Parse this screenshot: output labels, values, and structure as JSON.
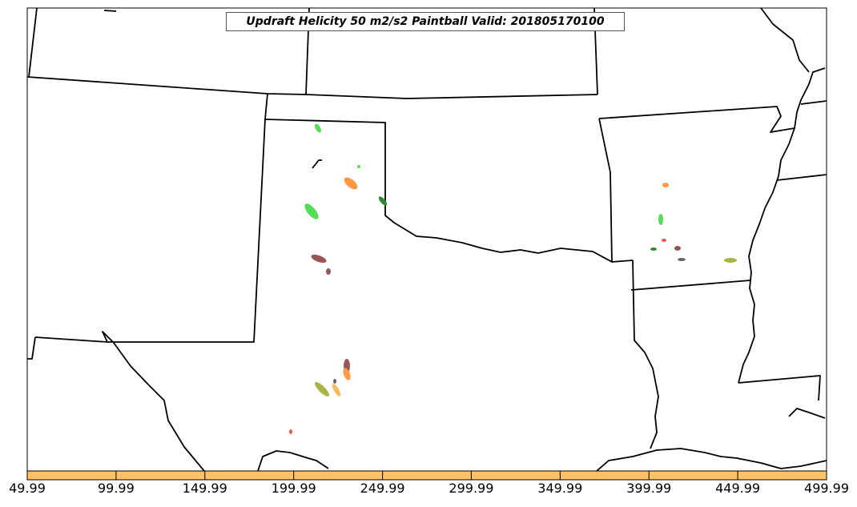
{
  "title": "Updraft Helicity 50 m2/s2 Paintball Valid: 201805170100",
  "colorbar": {
    "color": "#ffc266",
    "tick_labels": [
      "49.99",
      "99.99",
      "149.99",
      "199.99",
      "249.99",
      "299.99",
      "349.99",
      "399.99",
      "449.99",
      "499.99"
    ]
  },
  "colors": {
    "green": "#55dd55",
    "orange": "#ff9944",
    "brown": "#995555",
    "olive": "#aab444",
    "dark_green": "#338833",
    "red": "#ee5555",
    "light_orange": "#ffbb55",
    "gray": "#666666"
  }
}
